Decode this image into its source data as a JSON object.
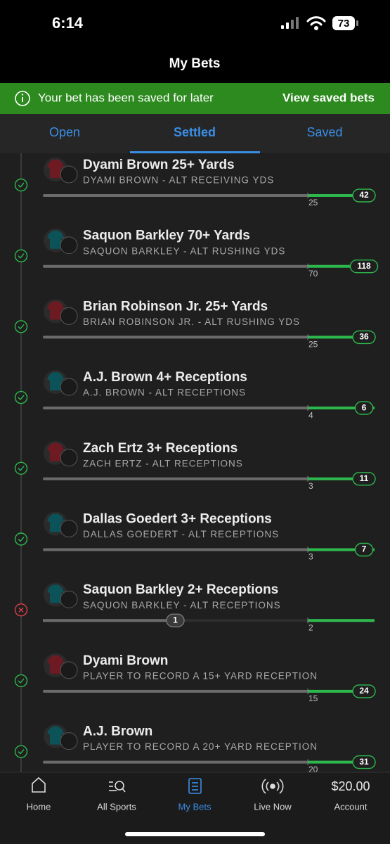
{
  "status_bar": {
    "time": "6:14",
    "battery": "73"
  },
  "header": {
    "title": "My Bets"
  },
  "banner": {
    "message": "Your bet has been saved for later",
    "action": "View saved bets"
  },
  "tabs": {
    "items": [
      "Open",
      "Settled",
      "Saved"
    ],
    "active": 1
  },
  "bets": [
    {
      "title": "Dyami Brown 25+ Yards",
      "market": "DYAMI BROWN - ALT RECEIVING YDS",
      "line": 25,
      "result": 42,
      "won": true,
      "jersey": "#6e1a22"
    },
    {
      "title": "Saquon Barkley 70+ Yards",
      "market": "SAQUON BARKLEY - ALT RUSHING YDS",
      "line": 70,
      "result": 118,
      "won": true,
      "jersey": "#0b5259"
    },
    {
      "title": "Brian Robinson Jr. 25+ Yards",
      "market": "BRIAN ROBINSON JR. - ALT RUSHING YDS",
      "line": 25,
      "result": 36,
      "won": true,
      "jersey": "#6e1a22"
    },
    {
      "title": "A.J. Brown 4+ Receptions",
      "market": "A.J. BROWN - ALT RECEPTIONS",
      "line": 4,
      "result": 6,
      "won": true,
      "jersey": "#0b5259"
    },
    {
      "title": "Zach Ertz 3+ Receptions",
      "market": "ZACH ERTZ - ALT RECEPTIONS",
      "line": 3,
      "result": 11,
      "won": true,
      "jersey": "#6e1a22"
    },
    {
      "title": "Dallas Goedert 3+ Receptions",
      "market": "DALLAS GOEDERT - ALT RECEPTIONS",
      "line": 3,
      "result": 7,
      "won": true,
      "jersey": "#0b5259"
    },
    {
      "title": "Saquon Barkley 2+ Receptions",
      "market": "SAQUON BARKLEY - ALT RECEPTIONS",
      "line": 2,
      "result": 1,
      "won": false,
      "jersey": "#0b5259"
    },
    {
      "title": "Dyami Brown",
      "market": "PLAYER TO RECORD A 15+ YARD RECEPTION",
      "line": 15,
      "result": 24,
      "won": true,
      "jersey": "#6e1a22"
    },
    {
      "title": "A.J. Brown",
      "market": "PLAYER TO RECORD A 20+ YARD RECEPTION",
      "line": 20,
      "result": 31,
      "won": true,
      "jersey": "#0b5259"
    }
  ],
  "nav": {
    "items": [
      {
        "label": "Home"
      },
      {
        "label": "All Sports"
      },
      {
        "label": "My Bets"
      },
      {
        "label": "Live Now"
      },
      {
        "label": "Account",
        "amount": "$20.00"
      }
    ],
    "active": 2
  }
}
